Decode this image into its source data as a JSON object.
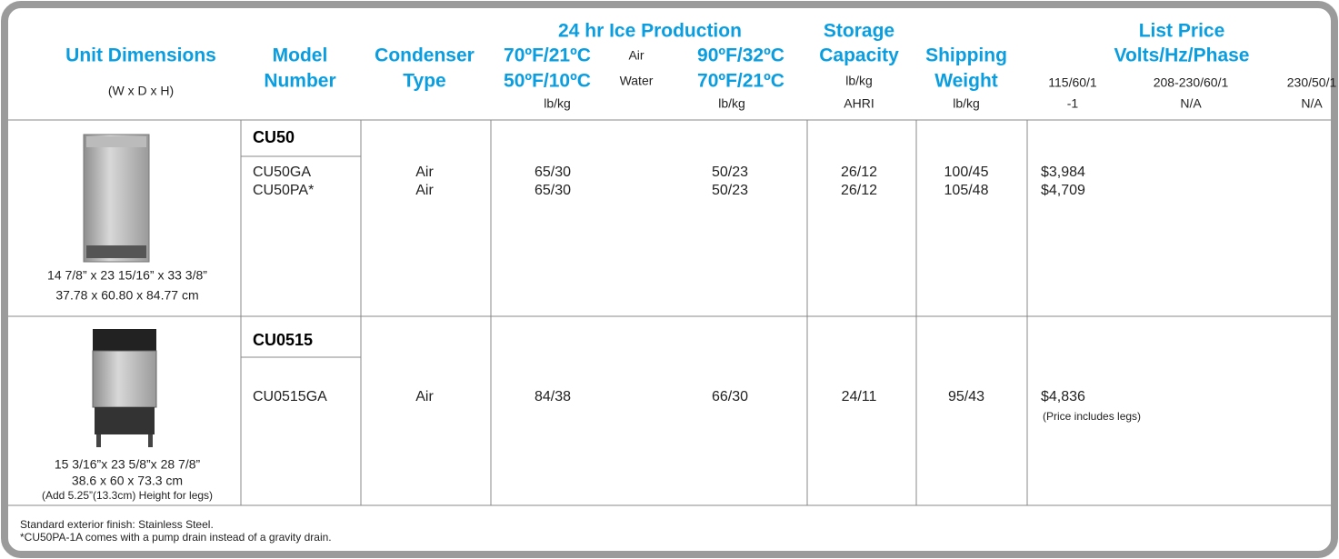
{
  "header": {
    "unit_dimensions": [
      "Unit Dimensions",
      "(W x D x H)"
    ],
    "model_number": [
      "Model",
      "Number"
    ],
    "condenser_type": [
      "Condenser",
      "Type"
    ],
    "ice_production": {
      "title": "24 hr Ice Production",
      "air_label": "Air",
      "water_label": "Water",
      "col1": [
        "70ºF/21ºC",
        "50ºF/10ºC",
        "lb/kg"
      ],
      "col2": [
        "90ºF/32ºC",
        "70ºF/21ºC",
        "lb/kg"
      ]
    },
    "storage_capacity": [
      "Storage",
      "Capacity",
      "lb/kg",
      "AHRI"
    ],
    "shipping_weight": [
      "Shipping",
      "Weight",
      "lb/kg"
    ],
    "list_price": {
      "title": [
        "List Price",
        "Volts/Hz/Phase"
      ],
      "voltages": [
        [
          "115/60/1",
          "-1"
        ],
        [
          "208-230/60/1",
          "N/A"
        ],
        [
          "230/50/1",
          "N/A"
        ]
      ]
    }
  },
  "rows": [
    {
      "dimensions": [
        "14 7/8” x 23 15/16” x 33 3/8”",
        "37.78 x 60.80 x 84.77 cm"
      ],
      "series": "CU50",
      "models": [
        {
          "model": "CU50GA",
          "condenser": "Air",
          "ice_1": "65/30",
          "ice_2": "50/23",
          "storage": "26/12",
          "shipping": "100/45",
          "price": "$3,984"
        },
        {
          "model": "CU50PA*",
          "condenser": "Air",
          "ice_1": "65/30",
          "ice_2": "50/23",
          "storage": "26/12",
          "shipping": "105/48",
          "price": "$4,709"
        }
      ]
    },
    {
      "dimensions": [
        "15 3/16”x 23 5/8”x 28 7/8”",
        "38.6 x 60 x 73.3 cm",
        "(Add 5.25”(13.3cm) Height for legs)"
      ],
      "series": "CU0515",
      "models": [
        {
          "model": "CU0515GA",
          "condenser": "Air",
          "ice_1": "84/38",
          "ice_2": "66/30",
          "storage": "24/11",
          "shipping": "95/43",
          "price": "$4,836"
        }
      ],
      "price_note": "(Price includes legs)"
    }
  ],
  "footer": [
    "Standard exterior finish: Stainless Steel.",
    "*CU50PA-1A comes with a pump drain instead of a gravity drain."
  ]
}
